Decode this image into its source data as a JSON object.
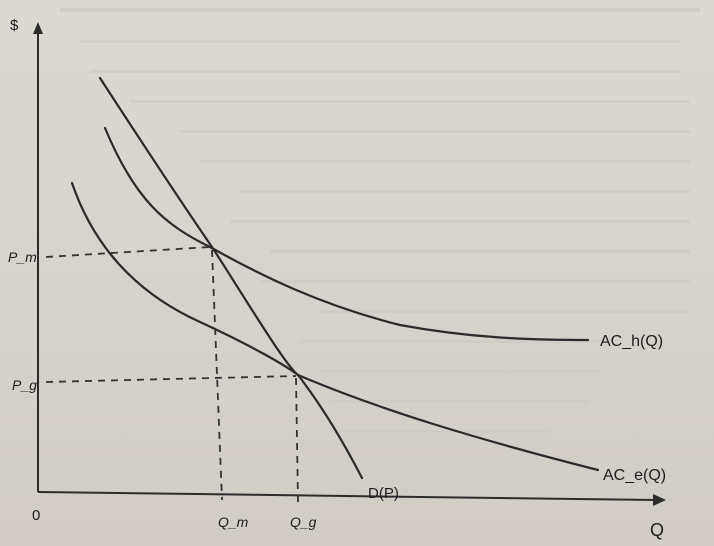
{
  "axes": {
    "y_label": "$",
    "x_label": "Q",
    "origin_label": "0"
  },
  "price_ticks": {
    "pm": "P_m",
    "pg": "P_g"
  },
  "quantity_ticks": {
    "qm": "Q_m",
    "qg": "Q_g"
  },
  "curves": {
    "demand": "D(P)",
    "ac_h": "AC_h(Q)",
    "ac_e": "AC_e(Q)"
  },
  "colors": {
    "ink": "#2a2a2a",
    "paper": "#d9d5cf"
  }
}
